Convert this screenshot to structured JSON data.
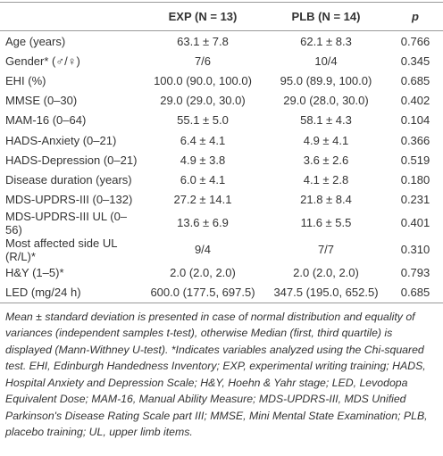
{
  "table": {
    "header": [
      "EXP (N = 13)",
      "PLB (N = 14)",
      "p"
    ],
    "rows": [
      [
        "Age (years)",
        "63.1 ± 7.8",
        "62.1 ± 8.3",
        "0.766"
      ],
      [
        "Gender* (♂/♀)",
        "7/6",
        "10/4",
        "0.345"
      ],
      [
        "EHI (%)",
        "100.0 (90.0, 100.0)",
        "95.0 (89.9, 100.0)",
        "0.685"
      ],
      [
        "MMSE (0–30)",
        "29.0 (29.0, 30.0)",
        "29.0 (28.0, 30.0)",
        "0.402"
      ],
      [
        "MAM-16 (0–64)",
        "55.1 ± 5.0",
        "58.1 ± 4.3",
        "0.104"
      ],
      [
        "HADS-Anxiety (0–21)",
        "6.4 ± 4.1",
        "4.9 ± 4.1",
        "0.366"
      ],
      [
        "HADS-Depression (0–21)",
        "4.9 ± 3.8",
        "3.6 ± 2.6",
        "0.519"
      ],
      [
        "Disease duration (years)",
        "6.0 ± 4.1",
        "4.1 ± 2.8",
        "0.180"
      ],
      [
        "MDS-UPDRS-III (0–132)",
        "27.2 ± 14.1",
        "21.8 ± 8.4",
        "0.231"
      ],
      [
        "MDS-UPDRS-III UL (0–56)",
        "13.6 ± 6.9",
        "11.6 ± 5.5",
        "0.401"
      ],
      [
        "Most affected side UL (R/L)*",
        "9/4",
        "7/7",
        "0.310"
      ],
      [
        "H&Y (1–5)*",
        "2.0 (2.0, 2.0)",
        "2.0 (2.0, 2.0)",
        "0.793"
      ],
      [
        "LED (mg/24 h)",
        "600.0 (177.5, 697.5)",
        "347.5 (195.0, 652.5)",
        "0.685"
      ]
    ]
  },
  "footnote": "Mean ± standard deviation is presented in case of normal distribution and equality of variances (independent samples t-test), otherwise Median (first, third quartile) is displayed (Mann-Withney U-test). *Indicates variables analyzed using the Chi-squared test. EHI, Edinburgh Handedness Inventory; EXP, experimental writing training; HADS, Hospital Anxiety and Depression Scale; H&Y, Hoehn & Yahr stage; LED, Levodopa Equivalent Dose; MAM-16, Manual Ability Measure; MDS-UPDRS-III, MDS Unified Parkinson's Disease Rating Scale part III; MMSE, Mini Mental State Examination; PLB, placebo training; UL, upper limb items."
}
